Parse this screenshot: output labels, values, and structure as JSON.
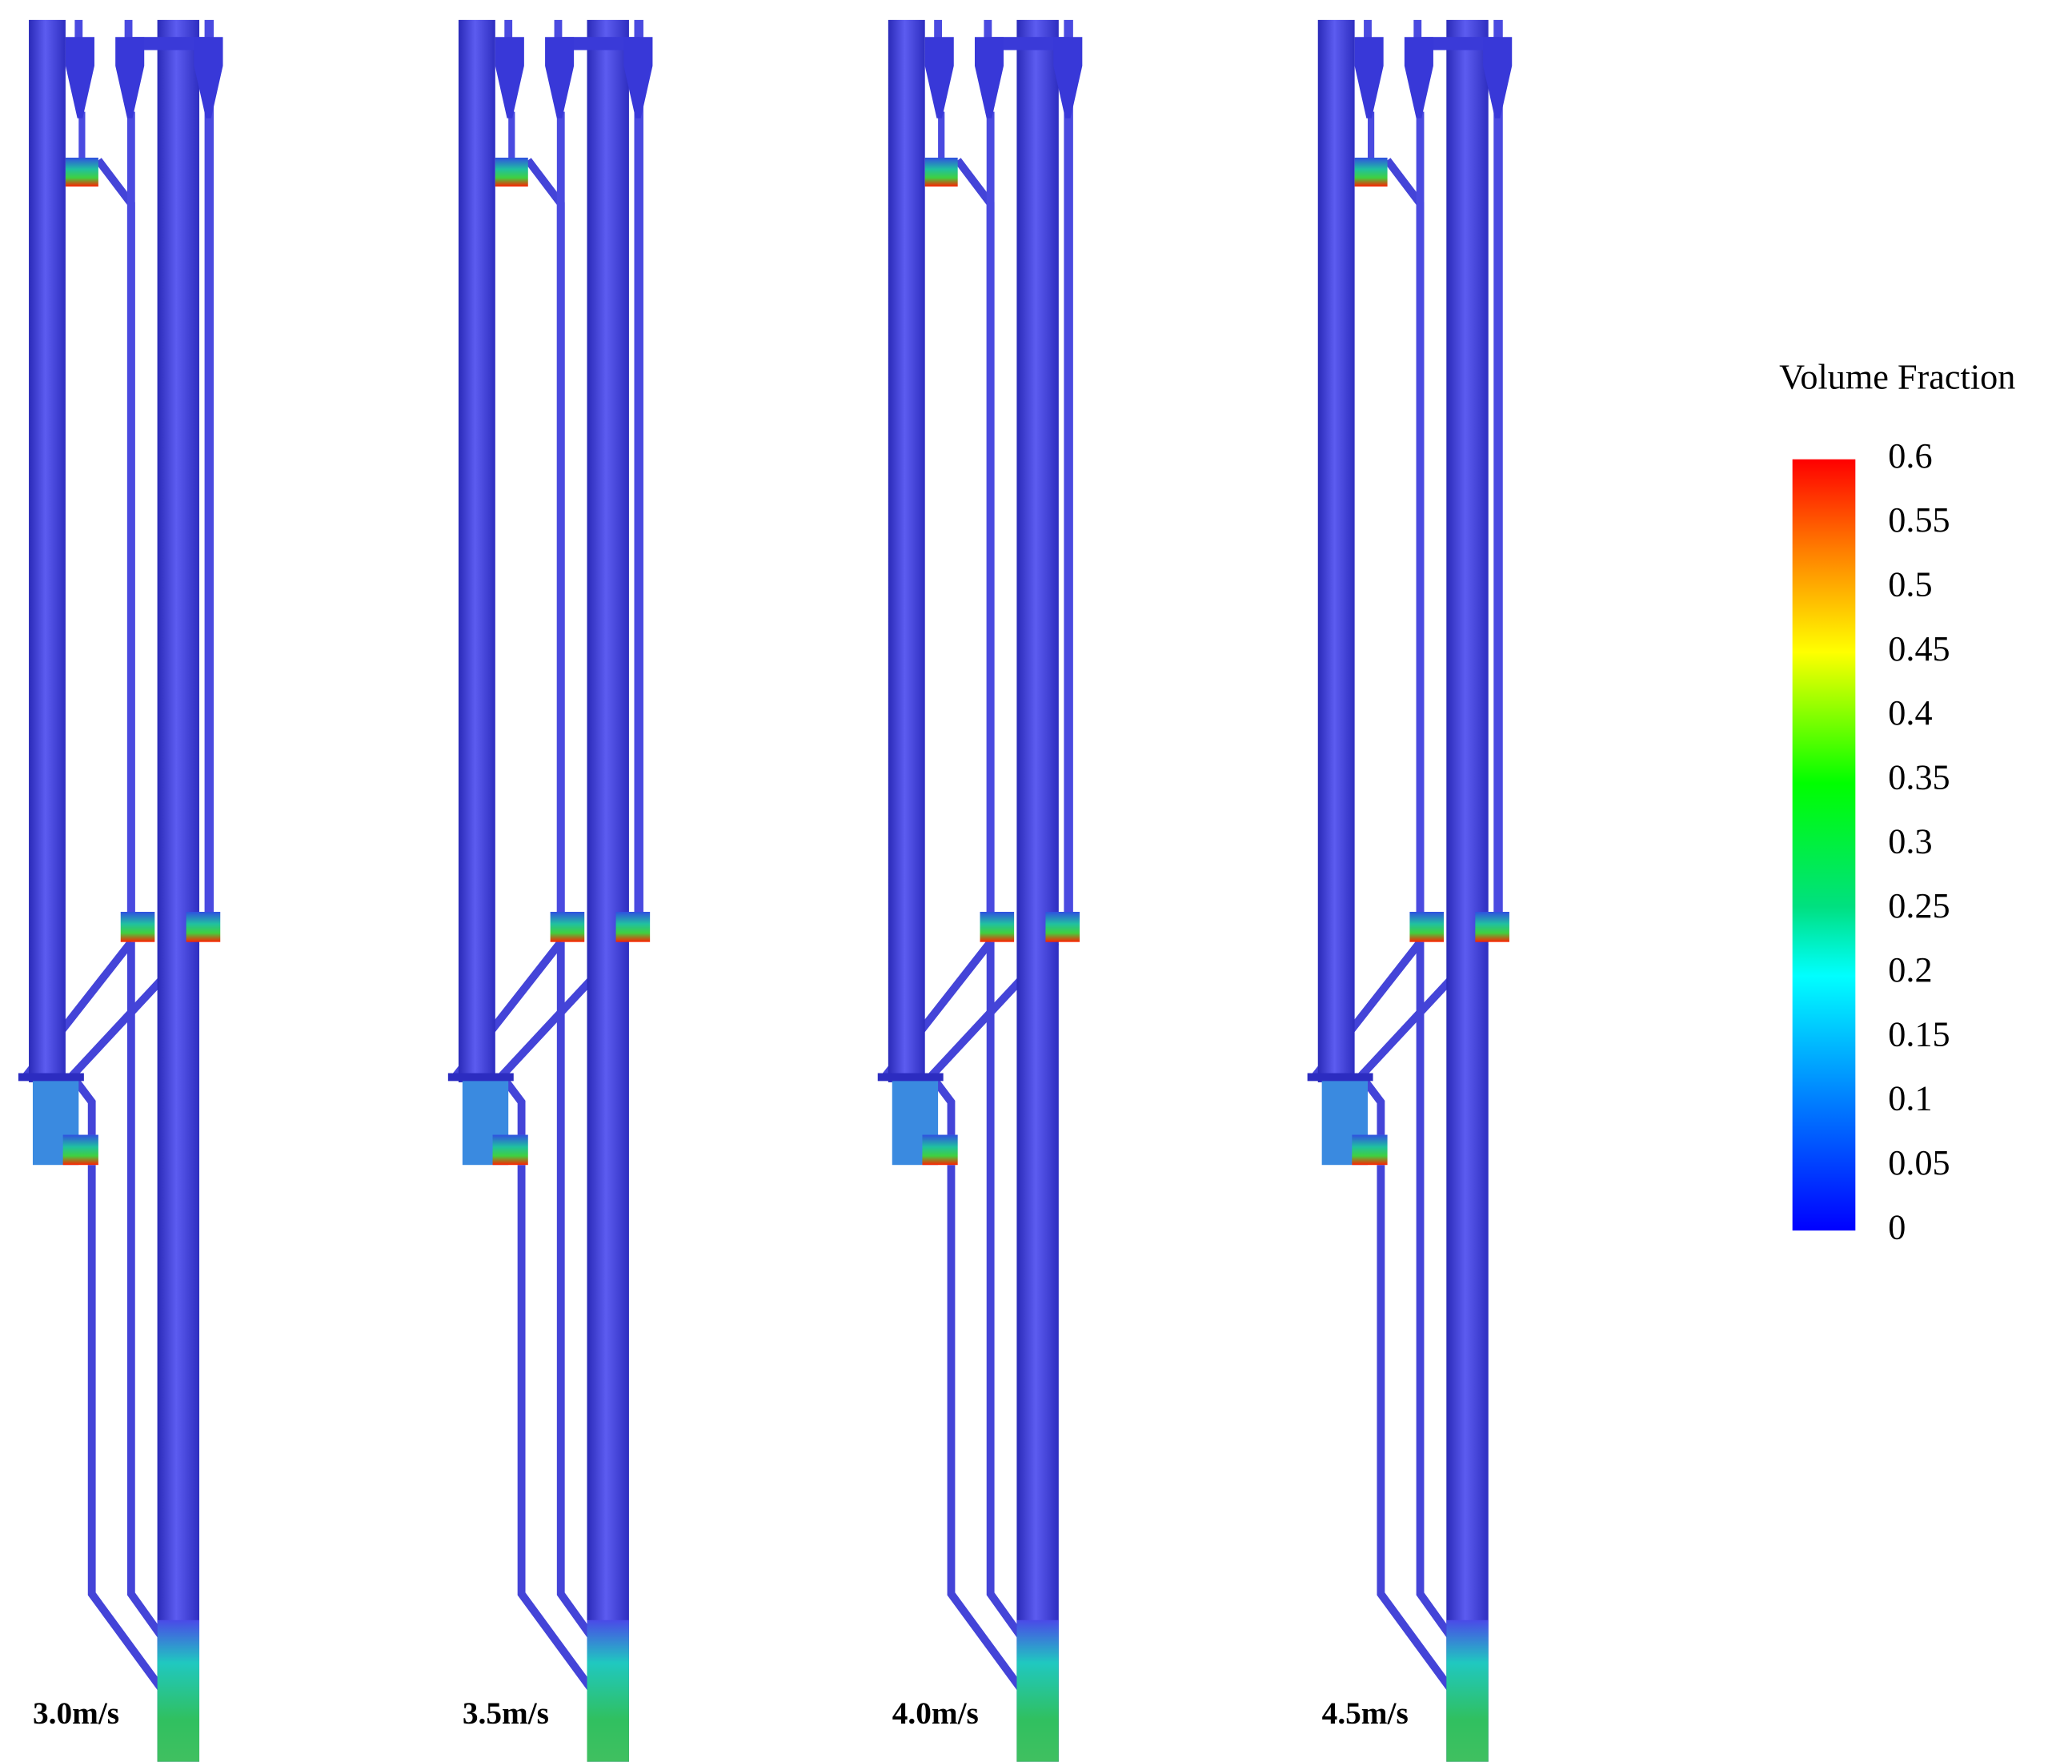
{
  "panels": [
    {
      "label": "3.0m/s"
    },
    {
      "label": "3.5m/s"
    },
    {
      "label": "4.0m/s"
    },
    {
      "label": "4.5m/s"
    }
  ],
  "colorbar": {
    "title": "Volume Fraction",
    "range": [
      0,
      0.6
    ],
    "ticks": [
      0.6,
      0.55,
      0.5,
      0.45,
      0.4,
      0.35,
      0.3,
      0.25,
      0.2,
      0.15,
      0.1,
      0.05,
      0
    ]
  }
}
